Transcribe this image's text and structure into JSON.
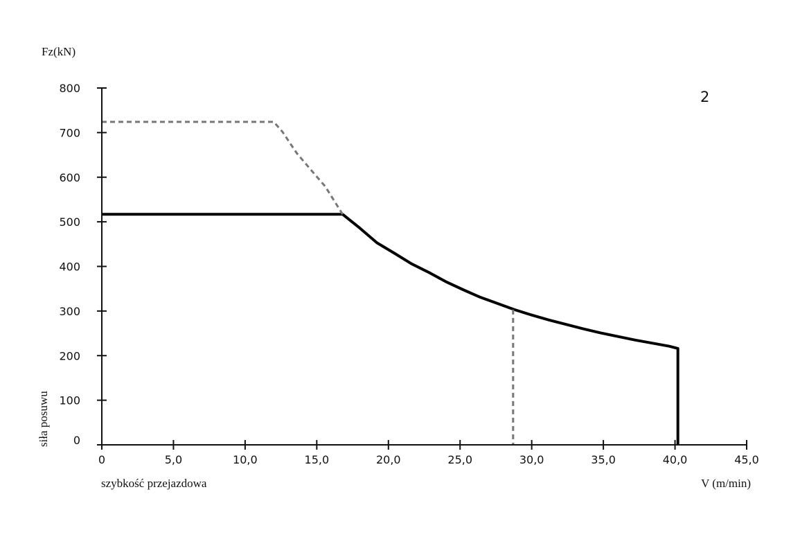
{
  "chart_data": {
    "type": "line",
    "title": "",
    "panel_label": "2",
    "ylabel_top": "Fz(kN)",
    "ylabel_side": "siła posuwu",
    "xlabel_left": "szybkość przejazdowa",
    "xlabel_right": "V (m/min)",
    "xlim": [
      0,
      45
    ],
    "ylim": [
      0,
      800
    ],
    "x_ticks": [
      0,
      5,
      10,
      15,
      20,
      25,
      30,
      35,
      40,
      45
    ],
    "x_tick_labels": [
      "0",
      "5,0",
      "10,0",
      "15,0",
      "20,0",
      "25,0",
      "30,0",
      "35,0",
      "40,0",
      "45,0"
    ],
    "y_ticks": [
      0,
      100,
      200,
      300,
      400,
      500,
      600,
      700,
      800
    ],
    "y_tick_labels": [
      "0",
      "100",
      "200",
      "300",
      "400",
      "500",
      "600",
      "700",
      "800"
    ],
    "grid": false,
    "series": [
      {
        "style": "solid",
        "color": "#000000",
        "points": [
          [
            0,
            517
          ],
          [
            16.8,
            517
          ],
          [
            18.0,
            486
          ],
          [
            19.2,
            453
          ],
          [
            20.5,
            428
          ],
          [
            21.6,
            406
          ],
          [
            22.8,
            387
          ],
          [
            24.0,
            366
          ],
          [
            25.2,
            348
          ],
          [
            26.4,
            331
          ],
          [
            27.6,
            317
          ],
          [
            28.8,
            303
          ],
          [
            30.0,
            291
          ],
          [
            31.2,
            280
          ],
          [
            32.4,
            270
          ],
          [
            33.6,
            260
          ],
          [
            34.8,
            251
          ],
          [
            36.0,
            243
          ],
          [
            37.2,
            235
          ],
          [
            38.4,
            228
          ],
          [
            39.6,
            221
          ],
          [
            40.2,
            216
          ],
          [
            40.2,
            0
          ]
        ]
      },
      {
        "style": "dashed",
        "color": "#777777",
        "points": [
          [
            0,
            724
          ],
          [
            12.0,
            724
          ],
          [
            12.6,
            702
          ],
          [
            13.6,
            654
          ],
          [
            14.6,
            616
          ],
          [
            15.6,
            579
          ],
          [
            16.8,
            517
          ]
        ]
      },
      {
        "style": "dashed",
        "color": "#777777",
        "points": [
          [
            28.7,
            303
          ],
          [
            28.7,
            0
          ]
        ]
      }
    ]
  }
}
